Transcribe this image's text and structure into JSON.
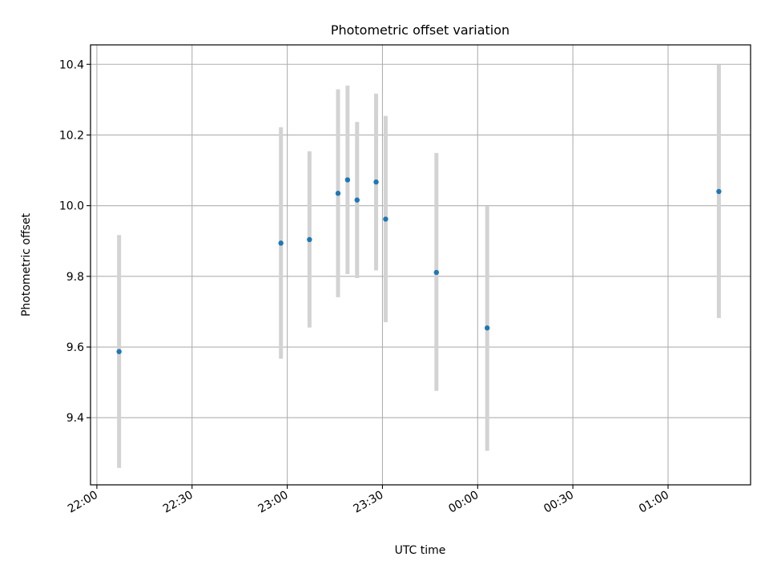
{
  "chart_data": {
    "type": "scatter",
    "title": "Photometric offset variation",
    "xlabel": "UTC time",
    "ylabel": "Photometric offset",
    "x_ticks": [
      "22:00",
      "22:30",
      "23:00",
      "23:30",
      "00:00",
      "00:30",
      "01:00"
    ],
    "y_ticks": [
      "9.4",
      "9.6",
      "9.8",
      "10.0",
      "10.2",
      "10.4"
    ],
    "xlim": [
      "21:58",
      "01:26"
    ],
    "ylim": [
      9.21,
      10.455
    ],
    "grid": true,
    "colors": {
      "points": "#1f77b4",
      "errorbars": "#d3d3d3",
      "grid": "#b0b0b0"
    },
    "points": [
      {
        "x": "22:07",
        "y": 9.587,
        "yerr_low": 9.258,
        "yerr_high": 9.917
      },
      {
        "x": "22:58",
        "y": 9.894,
        "yerr_low": 9.567,
        "yerr_high": 10.222
      },
      {
        "x": "23:07",
        "y": 9.904,
        "yerr_low": 9.655,
        "yerr_high": 10.154
      },
      {
        "x": "23:16",
        "y": 10.035,
        "yerr_low": 9.741,
        "yerr_high": 10.329
      },
      {
        "x": "23:19",
        "y": 10.073,
        "yerr_low": 9.806,
        "yerr_high": 10.34
      },
      {
        "x": "23:22",
        "y": 10.016,
        "yerr_low": 9.795,
        "yerr_high": 10.237
      },
      {
        "x": "23:28",
        "y": 10.067,
        "yerr_low": 9.817,
        "yerr_high": 10.317
      },
      {
        "x": "23:31",
        "y": 9.962,
        "yerr_low": 9.67,
        "yerr_high": 10.254
      },
      {
        "x": "23:47",
        "y": 9.811,
        "yerr_low": 9.476,
        "yerr_high": 10.149
      },
      {
        "x": "00:03",
        "y": 9.654,
        "yerr_low": 9.306,
        "yerr_high": 9.999
      },
      {
        "x": "01:16",
        "y": 10.04,
        "yerr_low": 9.682,
        "yerr_high": 10.399
      }
    ]
  }
}
